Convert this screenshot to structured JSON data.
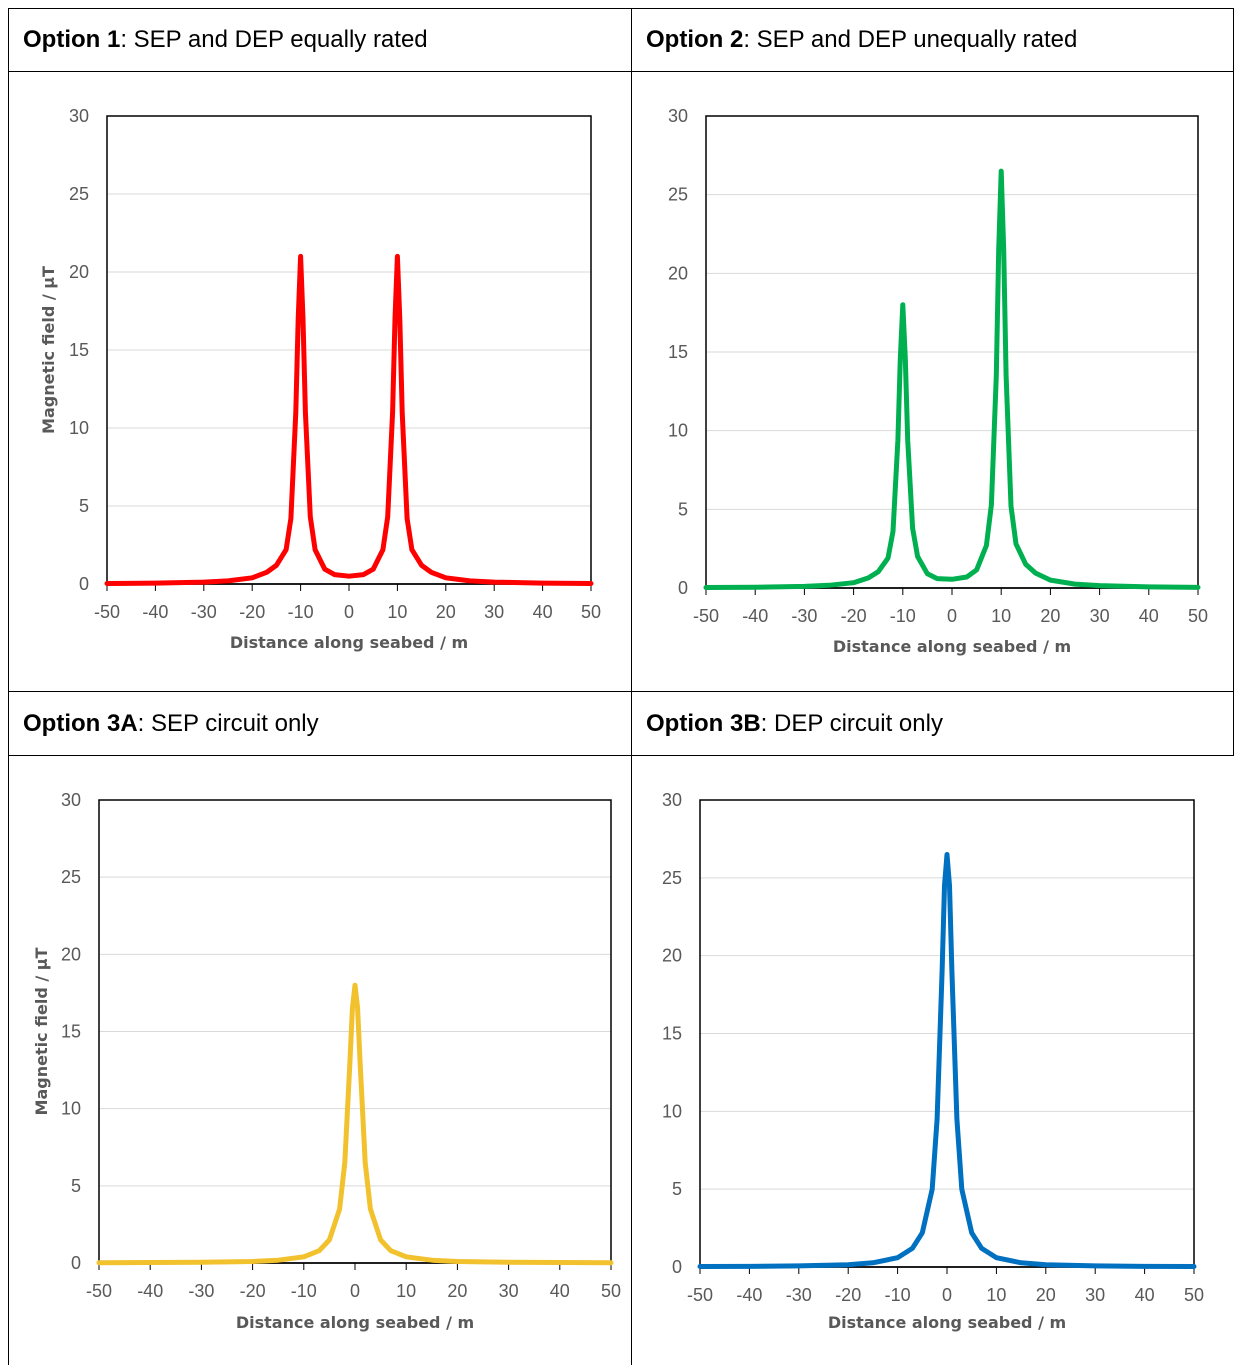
{
  "panels": [
    {
      "title_bold": "Option 1",
      "title_rest": ": SEP and DEP equally rated",
      "color": "#ff0000"
    },
    {
      "title_bold": "Option 2",
      "title_rest": ": SEP and DEP unequally rated",
      "color": "#00b050"
    },
    {
      "title_bold": "Option 3A",
      "title_rest": ": SEP circuit only",
      "color": "#f2c12e"
    },
    {
      "title_bold": "Option 3B",
      "title_rest": ": DEP circuit only",
      "color": "#0070c0"
    }
  ],
  "chart_data": [
    {
      "type": "line",
      "xlabel": "Distance along seabed / m",
      "ylabel": "Magnetic field / µT",
      "xlim": [
        -50,
        50
      ],
      "ylim": [
        0,
        30
      ],
      "xticks": [
        "-50",
        "-40",
        "-30",
        "-20",
        "-10",
        "0",
        "10",
        "20",
        "30",
        "40",
        "50"
      ],
      "yticks": [
        "0",
        "5",
        "10",
        "15",
        "20",
        "25",
        "30"
      ],
      "grid": true,
      "series": [
        {
          "color": "#ff0000",
          "x": [
            -50,
            -40,
            -30,
            -25,
            -20,
            -17,
            -15,
            -13,
            -12,
            -11,
            -10.5,
            -10,
            -9.5,
            -9,
            -8,
            -7,
            -5,
            -3,
            0,
            3,
            5,
            7,
            8,
            9,
            9.5,
            10,
            10.5,
            11,
            12,
            13,
            15,
            17,
            20,
            25,
            30,
            40,
            50
          ],
          "y": [
            0.03,
            0.06,
            0.12,
            0.2,
            0.4,
            0.75,
            1.2,
            2.2,
            4.2,
            11,
            17,
            21,
            17,
            11,
            4.3,
            2.2,
            0.95,
            0.6,
            0.5,
            0.6,
            0.95,
            2.2,
            4.3,
            11,
            17,
            21,
            17,
            11,
            4.2,
            2.2,
            1.2,
            0.75,
            0.4,
            0.2,
            0.12,
            0.06,
            0.03
          ]
        }
      ]
    },
    {
      "type": "line",
      "xlabel": "Distance along seabed / m",
      "ylabel": "",
      "xlim": [
        -50,
        50
      ],
      "ylim": [
        0,
        30
      ],
      "xticks": [
        "-50",
        "-40",
        "-30",
        "-20",
        "-10",
        "0",
        "10",
        "20",
        "30",
        "40",
        "50"
      ],
      "yticks": [
        "0",
        "5",
        "10",
        "15",
        "20",
        "25",
        "30"
      ],
      "grid": true,
      "series": [
        {
          "color": "#00b050",
          "x": [
            -50,
            -40,
            -30,
            -25,
            -20,
            -17,
            -15,
            -13,
            -12,
            -11,
            -10.5,
            -10,
            -9.5,
            -9,
            -8,
            -7,
            -5,
            -3,
            0,
            3,
            5,
            7,
            8,
            9,
            9.5,
            10,
            10.5,
            11,
            12,
            13,
            15,
            17,
            20,
            25,
            30,
            40,
            50
          ],
          "y": [
            0.03,
            0.05,
            0.1,
            0.17,
            0.34,
            0.64,
            1.03,
            1.9,
            3.6,
            9.4,
            14.6,
            18,
            14.6,
            9.4,
            3.8,
            2.0,
            0.9,
            0.6,
            0.55,
            0.7,
            1.15,
            2.7,
            5.3,
            13.5,
            21.5,
            26.5,
            21.5,
            13.5,
            5.2,
            2.8,
            1.5,
            0.95,
            0.5,
            0.25,
            0.15,
            0.07,
            0.04
          ]
        }
      ]
    },
    {
      "type": "line",
      "xlabel": "Distance along seabed / m",
      "ylabel": "Magnetic field / µT",
      "xlim": [
        -50,
        50
      ],
      "ylim": [
        0,
        30
      ],
      "xticks": [
        "-50",
        "-40",
        "-30",
        "-20",
        "-10",
        "0",
        "10",
        "20",
        "30",
        "40",
        "50"
      ],
      "yticks": [
        "0",
        "5",
        "10",
        "15",
        "20",
        "25",
        "30"
      ],
      "grid": true,
      "series": [
        {
          "color": "#f2c12e",
          "x": [
            -50,
            -40,
            -30,
            -20,
            -15,
            -10,
            -7,
            -5,
            -3,
            -2,
            -1,
            -0.5,
            0,
            0.5,
            1,
            2,
            3,
            5,
            7,
            10,
            15,
            20,
            30,
            40,
            50
          ],
          "y": [
            0.02,
            0.03,
            0.05,
            0.1,
            0.18,
            0.4,
            0.8,
            1.5,
            3.5,
            6.5,
            13,
            16.5,
            18,
            16.5,
            13,
            6.5,
            3.5,
            1.5,
            0.8,
            0.4,
            0.18,
            0.1,
            0.05,
            0.03,
            0.02
          ]
        }
      ]
    },
    {
      "type": "line",
      "xlabel": "Distance along seabed / m",
      "ylabel": "",
      "xlim": [
        -50,
        50
      ],
      "ylim": [
        0,
        30
      ],
      "xticks": [
        "-50",
        "-40",
        "-30",
        "-20",
        "-10",
        "0",
        "10",
        "20",
        "30",
        "40",
        "50"
      ],
      "yticks": [
        "0",
        "5",
        "10",
        "15",
        "20",
        "25",
        "30"
      ],
      "grid": true,
      "series": [
        {
          "color": "#0070c0",
          "x": [
            -50,
            -40,
            -30,
            -20,
            -15,
            -10,
            -7,
            -5,
            -3,
            -2,
            -1,
            -0.5,
            0,
            0.5,
            1,
            2,
            3,
            5,
            7,
            10,
            15,
            20,
            30,
            40,
            50
          ],
          "y": [
            0.03,
            0.04,
            0.07,
            0.15,
            0.27,
            0.6,
            1.2,
            2.2,
            5,
            9.5,
            19,
            24.5,
            26.5,
            24.5,
            19,
            9.5,
            5,
            2.2,
            1.2,
            0.6,
            0.27,
            0.15,
            0.07,
            0.04,
            0.03
          ]
        }
      ]
    }
  ]
}
